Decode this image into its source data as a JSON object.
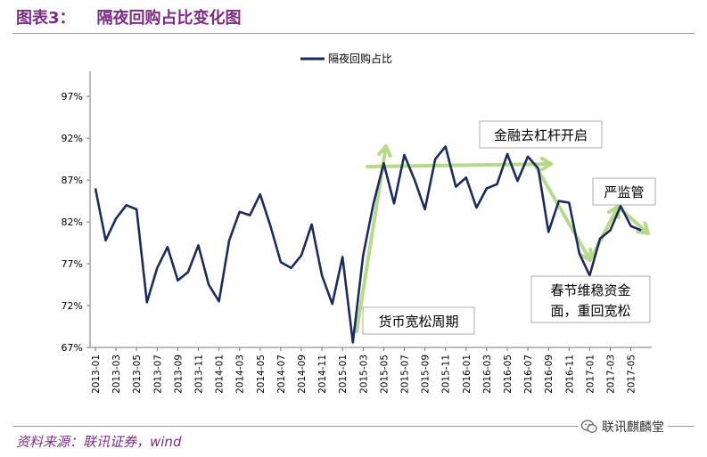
{
  "figure": {
    "label": "图表3：",
    "title": "隔夜回购占比变化图"
  },
  "source_text": "资料来源：联讯证券，wind",
  "watermark_text": "联讯麒麟堂",
  "watermark_icon": "wechat-icon",
  "colors": {
    "series_line": "#1B2B5E",
    "trend_arrow": "#B7D98A",
    "title_purple": "#7B2C86",
    "annotation_border": "#999999"
  },
  "chart_data": {
    "type": "line",
    "title": "",
    "legend": [
      "隔夜回购占比"
    ],
    "legend_position": "top-center",
    "ylim": [
      67,
      100
    ],
    "yticks": [
      67,
      72,
      77,
      82,
      87,
      92,
      97
    ],
    "ytick_labels": [
      "67%",
      "72%",
      "77%",
      "82%",
      "87%",
      "92%",
      "97%"
    ],
    "xtick_labels": [
      "2013-01",
      "2013-03",
      "2013-05",
      "2013-07",
      "2013-09",
      "2013-11",
      "2014-01",
      "2014-03",
      "2014-05",
      "2014-07",
      "2014-09",
      "2014-11",
      "2015-01",
      "2015-03",
      "2015-05",
      "2015-07",
      "2015-09",
      "2015-11",
      "2016-01",
      "2016-03",
      "2016-05",
      "2016-07",
      "2016-09",
      "2016-11",
      "2017-01",
      "2017-03",
      "2017-05"
    ],
    "series": [
      {
        "name": "隔夜回购占比",
        "x": [
          "2013-01",
          "2013-02",
          "2013-03",
          "2013-04",
          "2013-05",
          "2013-06",
          "2013-07",
          "2013-08",
          "2013-09",
          "2013-10",
          "2013-11",
          "2013-12",
          "2014-01",
          "2014-02",
          "2014-03",
          "2014-04",
          "2014-05",
          "2014-06",
          "2014-07",
          "2014-08",
          "2014-09",
          "2014-10",
          "2014-11",
          "2014-12",
          "2015-01",
          "2015-02",
          "2015-03",
          "2015-04",
          "2015-05",
          "2015-06",
          "2015-07",
          "2015-08",
          "2015-09",
          "2015-10",
          "2015-11",
          "2015-12",
          "2016-01",
          "2016-02",
          "2016-03",
          "2016-04",
          "2016-05",
          "2016-06",
          "2016-07",
          "2016-08",
          "2016-09",
          "2016-10",
          "2016-11",
          "2016-12",
          "2017-01",
          "2017-02",
          "2017-03",
          "2017-04",
          "2017-05",
          "2017-06"
        ],
        "values": [
          86.0,
          79.8,
          82.4,
          84.0,
          83.5,
          72.4,
          76.5,
          79.0,
          75.0,
          76.0,
          79.2,
          74.5,
          72.5,
          79.8,
          83.2,
          82.8,
          85.3,
          81.5,
          77.2,
          76.5,
          78.0,
          81.7,
          75.6,
          72.2,
          77.8,
          67.6,
          78.0,
          84.2,
          89.0,
          84.2,
          90.0,
          87.0,
          83.5,
          89.5,
          91.0,
          86.2,
          87.3,
          83.7,
          86.0,
          86.5,
          90.1,
          86.9,
          89.8,
          88.4,
          80.8,
          84.5,
          84.3,
          78.2,
          75.6,
          80.0,
          81.0,
          83.9,
          81.5,
          81.0
        ]
      }
    ],
    "annotations": [
      {
        "text": "货币宽松周期"
      },
      {
        "text": "金融去杠杆开启"
      },
      {
        "text": "严监管"
      },
      {
        "lines": [
          "春节维稳资金",
          "面，重回宽松"
        ]
      }
    ]
  }
}
